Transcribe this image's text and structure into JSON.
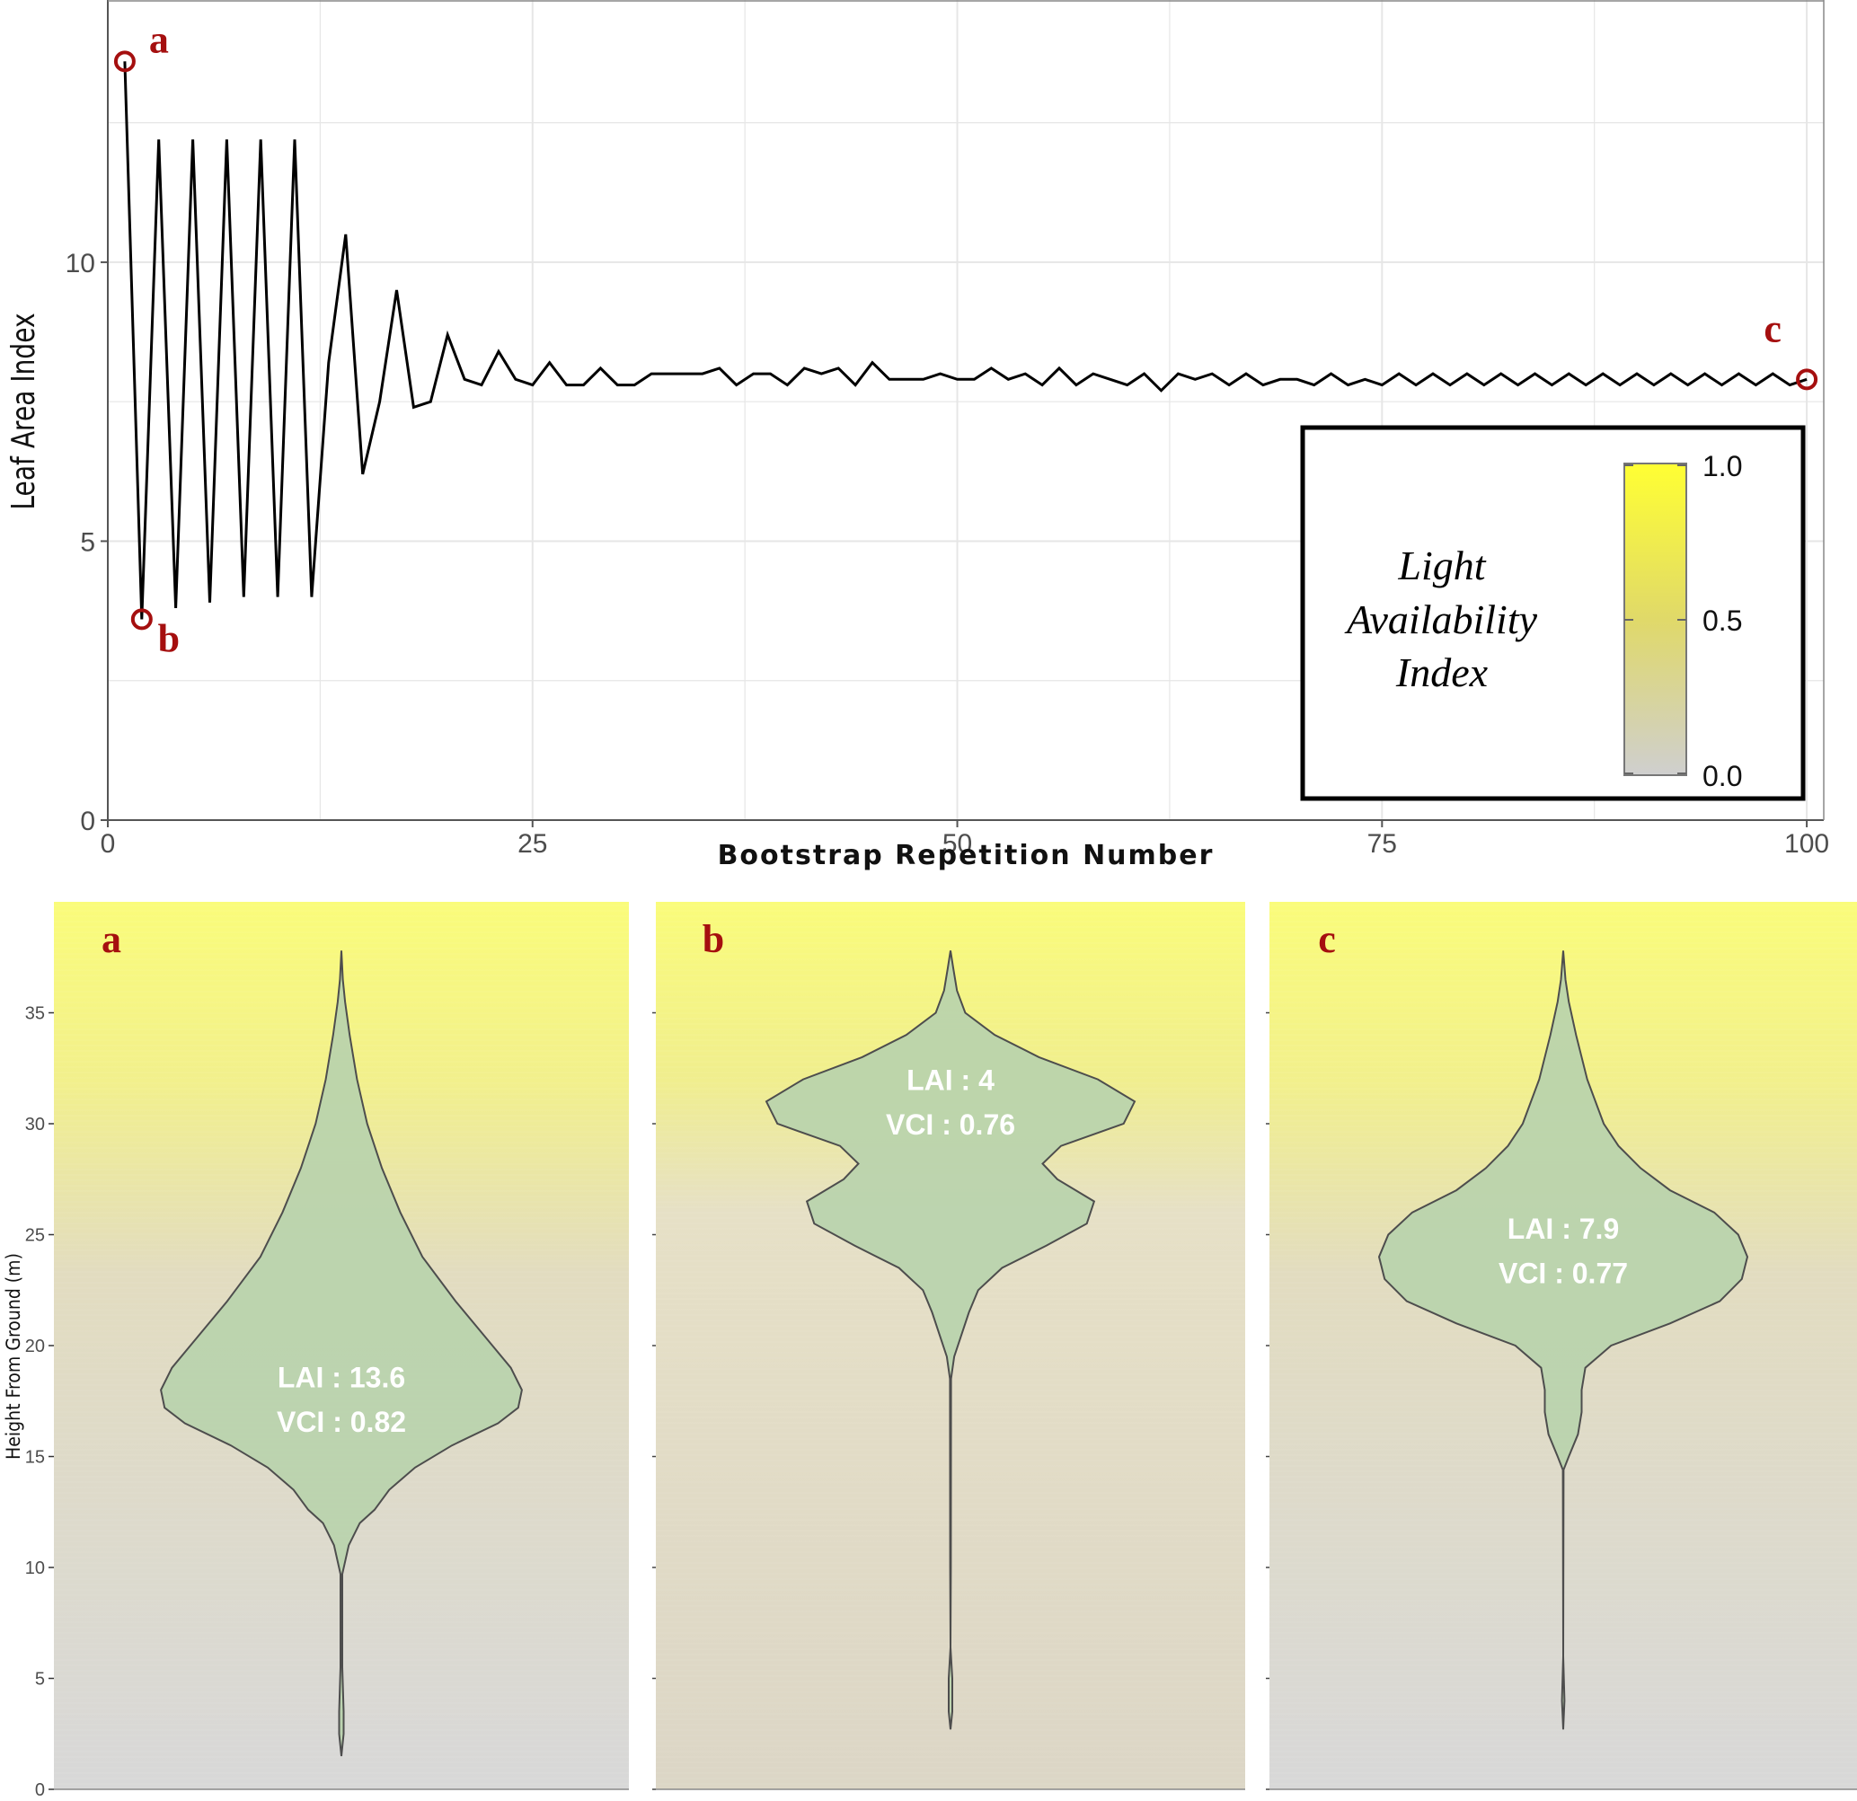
{
  "colors": {
    "line": "#000000",
    "marker": "#a50f0f",
    "grid": "#e6e6e6",
    "violin_fill": "#b9d3ac",
    "violin_stroke": "#4d4d4d",
    "light_high": "#fafc7a",
    "light_low": "#d8d8d8"
  },
  "chart_data": [
    {
      "type": "line",
      "ylabel": "Leaf Area Index",
      "xlabel": "Bootstrap Repetition Number",
      "xlim": [
        0,
        101
      ],
      "ylim": [
        0,
        14.7
      ],
      "xticks": [
        0,
        25,
        50,
        75,
        100
      ],
      "yticks": [
        0,
        5,
        10
      ],
      "grid": true,
      "x": [
        1,
        2,
        3,
        4,
        5,
        6,
        7,
        8,
        9,
        10,
        11,
        12,
        13,
        14,
        15,
        16,
        17,
        18,
        19,
        20,
        21,
        22,
        23,
        24,
        25,
        26,
        27,
        28,
        29,
        30,
        31,
        32,
        33,
        34,
        35,
        36,
        37,
        38,
        39,
        40,
        41,
        42,
        43,
        44,
        45,
        46,
        47,
        48,
        49,
        50,
        51,
        52,
        53,
        54,
        55,
        56,
        57,
        58,
        59,
        60,
        61,
        62,
        63,
        64,
        65,
        66,
        67,
        68,
        69,
        70,
        71,
        72,
        73,
        74,
        75,
        76,
        77,
        78,
        79,
        80,
        81,
        82,
        83,
        84,
        85,
        86,
        87,
        88,
        89,
        90,
        91,
        92,
        93,
        94,
        95,
        96,
        97,
        98,
        99,
        100
      ],
      "y": [
        13.6,
        3.6,
        12.2,
        3.8,
        12.2,
        3.9,
        12.2,
        4.0,
        12.2,
        4.0,
        12.2,
        4.0,
        8.2,
        10.5,
        6.2,
        7.5,
        9.5,
        7.4,
        7.5,
        8.7,
        7.9,
        7.8,
        8.4,
        7.9,
        7.8,
        8.2,
        7.8,
        7.8,
        8.1,
        7.8,
        7.8,
        8.0,
        8.0,
        8.0,
        8.0,
        8.1,
        7.8,
        8.0,
        8.0,
        7.8,
        8.1,
        8.0,
        8.1,
        7.8,
        8.2,
        7.9,
        7.9,
        7.9,
        8.0,
        7.9,
        7.9,
        8.1,
        7.9,
        8.0,
        7.8,
        8.1,
        7.8,
        8.0,
        7.9,
        7.8,
        8.0,
        7.7,
        8.0,
        7.9,
        8.0,
        7.8,
        8.0,
        7.8,
        7.9,
        7.9,
        7.8,
        8.0,
        7.8,
        7.9,
        7.8,
        8.0,
        7.8,
        8.0,
        7.8,
        8.0,
        7.8,
        8.0,
        7.8,
        8.0,
        7.8,
        8.0,
        7.8,
        8.0,
        7.8,
        8.0,
        7.8,
        8.0,
        7.8,
        8.0,
        7.8,
        8.0,
        7.8,
        8.0,
        7.8,
        7.9
      ],
      "highlighted_points": [
        {
          "label": "a",
          "x": 1,
          "y": 13.6
        },
        {
          "label": "b",
          "x": 2,
          "y": 3.6
        },
        {
          "label": "c",
          "x": 100,
          "y": 7.9
        }
      ],
      "legend": {
        "title_lines": [
          "Light",
          "Availability",
          "Index"
        ],
        "colorbar_range": [
          0.0,
          1.0
        ],
        "tick_labels": [
          "1.0",
          "0.5",
          "0.0"
        ],
        "position": "bottom-right"
      }
    },
    {
      "type": "violin",
      "ylabel": "Height From Ground (m)",
      "ylim": [
        0,
        40
      ],
      "yticks": [
        0,
        5,
        10,
        15,
        20,
        25,
        30,
        35
      ],
      "panels": [
        {
          "label": "a",
          "annotation": [
            "LAI : 13.6",
            "VCI : 0.82"
          ],
          "annotation_height": [
            18.6,
            16.6
          ],
          "height_range": [
            1.5,
            37.8
          ],
          "density": [
            [
              1.5,
              0.0
            ],
            [
              2.5,
              0.012
            ],
            [
              3.5,
              0.012
            ],
            [
              5.5,
              0.005
            ],
            [
              8.0,
              0.005
            ],
            [
              9.7,
              0.005
            ],
            [
              11.0,
              0.04
            ],
            [
              12.0,
              0.1
            ],
            [
              12.6,
              0.18
            ],
            [
              13.5,
              0.26
            ],
            [
              14.5,
              0.4
            ],
            [
              15.5,
              0.6
            ],
            [
              16.5,
              0.85
            ],
            [
              17.2,
              0.96
            ],
            [
              18.0,
              0.98
            ],
            [
              19.0,
              0.92
            ],
            [
              20.0,
              0.82
            ],
            [
              22.0,
              0.62
            ],
            [
              24.0,
              0.44
            ],
            [
              26.0,
              0.32
            ],
            [
              28.0,
              0.22
            ],
            [
              30.0,
              0.14
            ],
            [
              32.0,
              0.085
            ],
            [
              34.0,
              0.045
            ],
            [
              35.5,
              0.02
            ],
            [
              36.5,
              0.008
            ],
            [
              37.8,
              0.0
            ]
          ]
        },
        {
          "label": "b",
          "annotation": [
            "LAI : 4",
            "VCI : 0.76"
          ],
          "annotation_height": [
            32.0,
            30.0
          ],
          "height_range": [
            2.7,
            37.8
          ],
          "density": [
            [
              2.7,
              0.0
            ],
            [
              3.5,
              0.01
            ],
            [
              5.0,
              0.01
            ],
            [
              6.4,
              0.0
            ],
            [
              10.0,
              0.002
            ],
            [
              18.5,
              0.003
            ],
            [
              19.5,
              0.02
            ],
            [
              20.5,
              0.06
            ],
            [
              21.5,
              0.1
            ],
            [
              22.5,
              0.15
            ],
            [
              23.5,
              0.28
            ],
            [
              24.5,
              0.52
            ],
            [
              25.5,
              0.74
            ],
            [
              26.5,
              0.78
            ],
            [
              27.5,
              0.58
            ],
            [
              28.2,
              0.5
            ],
            [
              29.0,
              0.6
            ],
            [
              30.0,
              0.94
            ],
            [
              31.0,
              1.0
            ],
            [
              32.0,
              0.8
            ],
            [
              33.0,
              0.48
            ],
            [
              34.0,
              0.24
            ],
            [
              35.0,
              0.08
            ],
            [
              36.0,
              0.035
            ],
            [
              37.0,
              0.015
            ],
            [
              37.8,
              0.0
            ]
          ]
        },
        {
          "label": "c",
          "annotation": [
            "LAI : 7.9",
            "VCI : 0.77"
          ],
          "annotation_height": [
            25.3,
            23.3
          ],
          "height_range": [
            2.7,
            37.8
          ],
          "density": [
            [
              2.7,
              0.0
            ],
            [
              4.0,
              0.007
            ],
            [
              6.0,
              0.0
            ],
            [
              14.4,
              0.002
            ],
            [
              15.0,
              0.03
            ],
            [
              16.0,
              0.08
            ],
            [
              17.0,
              0.1
            ],
            [
              18.0,
              0.1
            ],
            [
              19.0,
              0.12
            ],
            [
              20.0,
              0.26
            ],
            [
              21.0,
              0.58
            ],
            [
              22.0,
              0.85
            ],
            [
              23.0,
              0.97
            ],
            [
              24.0,
              1.0
            ],
            [
              25.0,
              0.95
            ],
            [
              26.0,
              0.82
            ],
            [
              27.0,
              0.58
            ],
            [
              28.0,
              0.42
            ],
            [
              29.0,
              0.3
            ],
            [
              30.0,
              0.22
            ],
            [
              32.0,
              0.13
            ],
            [
              34.0,
              0.07
            ],
            [
              35.5,
              0.03
            ],
            [
              36.5,
              0.012
            ],
            [
              37.8,
              0.0
            ]
          ]
        }
      ],
      "background": "vertical light gradient, yellow at top to gray at bottom"
    }
  ]
}
